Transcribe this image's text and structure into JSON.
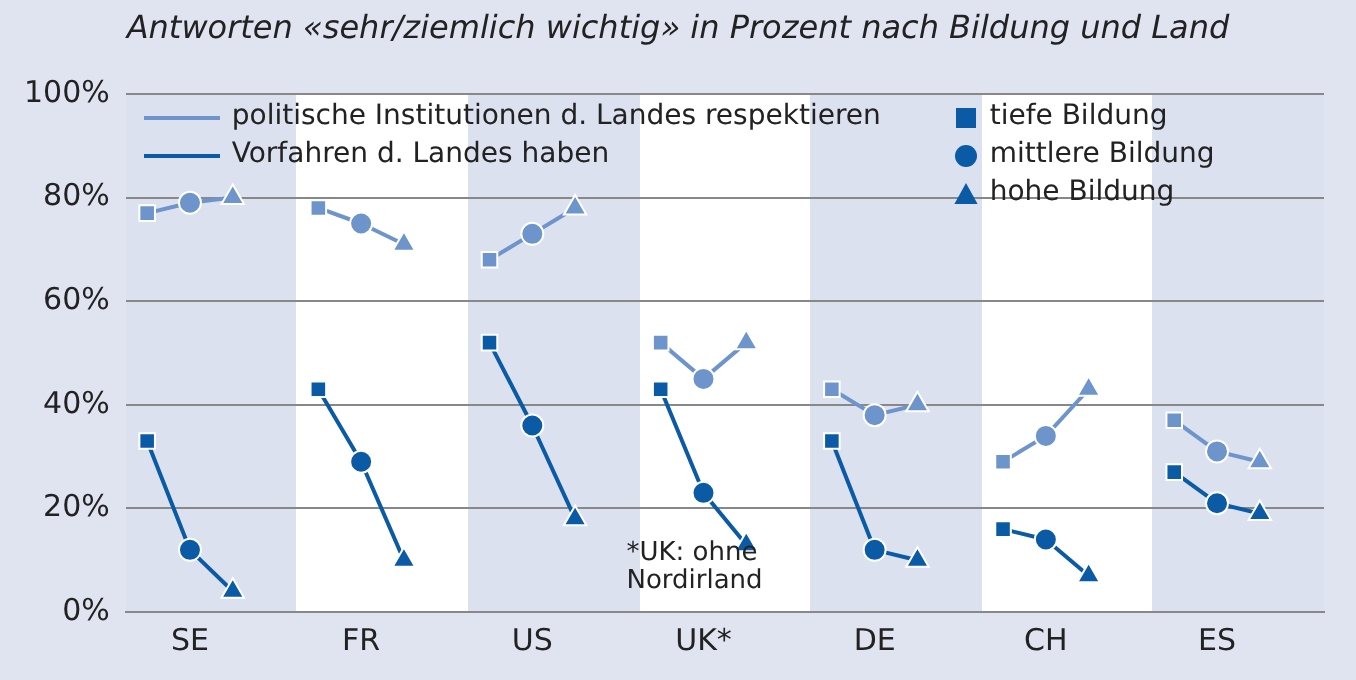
{
  "chart_data": {
    "type": "line",
    "title": "Antworten «sehr/ziemlich wichtig» in Prozent nach Bildung und Land",
    "categories": [
      null,
      "SE",
      null,
      null,
      null,
      "FR",
      null,
      null,
      null,
      "US",
      null,
      null,
      null,
      "UK*",
      null,
      null,
      null,
      "DE",
      null,
      null,
      null,
      "CH",
      null,
      null,
      null,
      "ES",
      null,
      null
    ],
    "ylim": [
      0,
      100
    ],
    "yticks": [
      {
        "value": 0,
        "label": "0%"
      },
      {
        "value": 20,
        "label": "20%"
      },
      {
        "value": 40,
        "label": "40%"
      },
      {
        "value": 60,
        "label": "60%"
      },
      {
        "value": 80,
        "label": "80%"
      },
      {
        "value": 100,
        "label": "100%"
      }
    ],
    "grid": "y",
    "legend": "top",
    "series": [
      {
        "name": "politische Institutionen d. Landes respektieren",
        "color": "#6e94cc",
        "marker": "none",
        "values": [
          77,
          79,
          80,
          null,
          78,
          75,
          71,
          null,
          68,
          73,
          78,
          null,
          52,
          45,
          52,
          null,
          43,
          38,
          40,
          null,
          29,
          34,
          43,
          null,
          37,
          31,
          29,
          null
        ]
      },
      {
        "name": "Vorfahren d. Landes haben",
        "color": "#0b5aa5",
        "marker": "none",
        "values": [
          33,
          12,
          4,
          null,
          43,
          29,
          10,
          null,
          52,
          36,
          18,
          null,
          43,
          23,
          13,
          null,
          33,
          12,
          10,
          null,
          16,
          14,
          7,
          null,
          27,
          21,
          19,
          null
        ]
      },
      {
        "type": "scatter",
        "color": "#6e94cc",
        "marker": "square",
        "values": [
          77,
          null,
          null,
          null,
          78,
          null,
          null,
          null,
          68,
          null,
          null,
          null,
          52,
          null,
          null,
          null,
          43,
          null,
          null,
          null,
          29,
          null,
          null,
          null,
          37,
          null,
          null,
          null
        ]
      },
      {
        "type": "scatter",
        "color": "#6e94cc",
        "marker": "circle",
        "values": [
          null,
          79,
          null,
          null,
          null,
          75,
          null,
          null,
          null,
          73,
          null,
          null,
          null,
          45,
          null,
          null,
          null,
          38,
          null,
          null,
          null,
          34,
          null,
          null,
          null,
          31,
          null,
          null
        ]
      },
      {
        "type": "scatter",
        "color": "#6e94cc",
        "marker": "triangle",
        "values": [
          null,
          null,
          80,
          null,
          null,
          null,
          71,
          null,
          null,
          null,
          78,
          null,
          null,
          null,
          52,
          null,
          null,
          null,
          40,
          null,
          null,
          null,
          43,
          null,
          null,
          null,
          29,
          null
        ]
      },
      {
        "type": "scatter",
        "name": "tiefe Bildung",
        "color": "#0b5aa5",
        "marker": "square",
        "values": [
          33,
          null,
          null,
          null,
          43,
          null,
          null,
          null,
          52,
          null,
          null,
          null,
          43,
          null,
          null,
          null,
          33,
          null,
          null,
          null,
          16,
          null,
          null,
          null,
          27,
          null,
          null,
          null
        ]
      },
      {
        "type": "scatter",
        "name": "mittlere Bildung",
        "color": "#0b5aa5",
        "marker": "circle",
        "values": [
          null,
          12,
          null,
          null,
          null,
          29,
          null,
          null,
          null,
          36,
          null,
          null,
          null,
          23,
          null,
          null,
          null,
          12,
          null,
          null,
          null,
          14,
          null,
          null,
          null,
          21,
          null,
          null
        ]
      },
      {
        "type": "scatter",
        "name": "hohe Bildung",
        "color": "#0b5aa5",
        "marker": "triangle",
        "values": [
          null,
          null,
          4,
          null,
          null,
          null,
          10,
          null,
          null,
          null,
          18,
          null,
          null,
          null,
          13,
          null,
          null,
          null,
          10,
          null,
          null,
          null,
          7,
          null,
          null,
          null,
          19,
          null
        ]
      }
    ],
    "annotations": [
      "*UK: ohne Nordirland"
    ]
  }
}
